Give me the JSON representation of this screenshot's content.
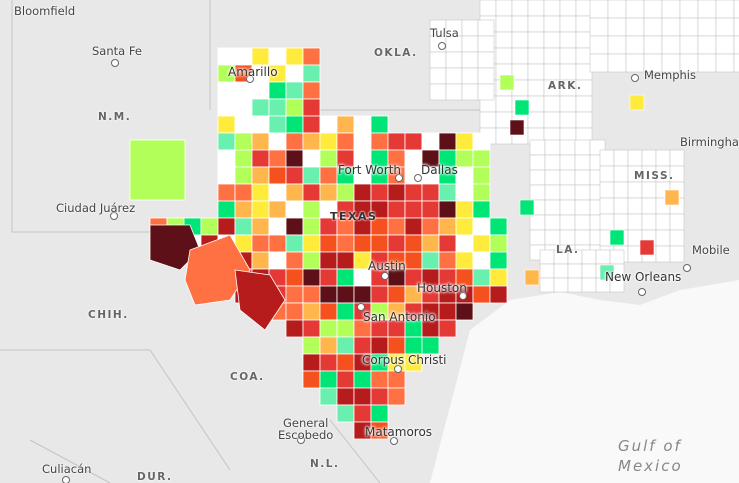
{
  "map": {
    "state_label": "TEXAS",
    "water": {
      "line1": "Gulf of",
      "line2": "Mexico"
    },
    "region_labels": [
      {
        "id": "okla",
        "text": "OKLA."
      },
      {
        "id": "nm",
        "text": "N.M."
      },
      {
        "id": "ark",
        "text": "ARK."
      },
      {
        "id": "miss",
        "text": "MISS."
      },
      {
        "id": "la",
        "text": "LA."
      },
      {
        "id": "chih",
        "text": "CHIH."
      },
      {
        "id": "coa",
        "text": "COA."
      },
      {
        "id": "nl",
        "text": "N.L."
      },
      {
        "id": "dur",
        "text": "DUR."
      }
    ],
    "cities": [
      {
        "id": "bloomfield",
        "name": "Bloomfield"
      },
      {
        "id": "santa-fe",
        "name": "Santa Fe"
      },
      {
        "id": "tulsa",
        "name": "Tulsa"
      },
      {
        "id": "memphis",
        "name": "Memphis"
      },
      {
        "id": "birmingham",
        "name": "Birmingham"
      },
      {
        "id": "amarillo",
        "name": "Amarillo"
      },
      {
        "id": "fort-worth",
        "name": "Fort Worth"
      },
      {
        "id": "dallas",
        "name": "Dallas"
      },
      {
        "id": "ciudad-juarez",
        "name": "Ciudad Juárez"
      },
      {
        "id": "austin",
        "name": "Austin"
      },
      {
        "id": "houston",
        "name": "Houston"
      },
      {
        "id": "san-antonio",
        "name": "San Antonio"
      },
      {
        "id": "corpus-christi",
        "name": "Corpus Christi"
      },
      {
        "id": "new-orleans",
        "name": "New Orleans"
      },
      {
        "id": "mobile",
        "name": "Mobile"
      },
      {
        "id": "matamoros",
        "name": "Matamoros"
      },
      {
        "id": "general-escobedo",
        "name": "General\nEscobedo"
      },
      {
        "id": "culiacan",
        "name": "Culiacán"
      }
    ],
    "colors": {
      "land": "#e8e8e8",
      "sea": "#f8f8f8",
      "county_blank": "#ffffff",
      "scale": [
        "#00e676",
        "#69f0ae",
        "#b2ff59",
        "#ffeb3b",
        "#ffb74d",
        "#ff7043",
        "#f4511e",
        "#e53935",
        "#b71c1c",
        "#5d1018"
      ]
    }
  }
}
